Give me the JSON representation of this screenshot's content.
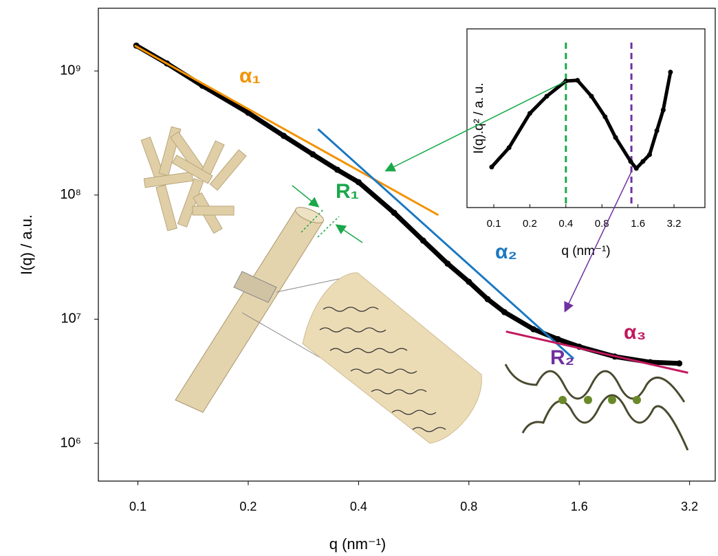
{
  "chart_data": [
    {
      "type": "line",
      "x_label": "q (nm⁻¹)",
      "y_label": "I(q) / a.u.",
      "xscale": "log",
      "yscale": "log",
      "xlim": [
        0.078,
        3.76
      ],
      "ylim": [
        496000,
        3200000000
      ],
      "xticks": [
        0.1,
        0.2,
        0.4,
        0.8,
        1.6,
        3.2
      ],
      "yticks": [
        {
          "value": 1000000,
          "label": "10⁶"
        },
        {
          "value": 10000000,
          "label": "10⁷"
        },
        {
          "value": 100000000,
          "label": "10⁸"
        },
        {
          "value": 1000000000,
          "label": "10⁹"
        }
      ],
      "x": [
        0.099,
        0.12,
        0.15,
        0.2,
        0.25,
        0.3,
        0.35,
        0.4,
        0.5,
        0.6,
        0.7,
        0.8,
        0.9,
        1.0,
        1.2,
        1.4,
        1.6,
        2.0,
        2.5,
        3.0
      ],
      "values": [
        1600000000,
        1150000000,
        760000000,
        460000000,
        300000000,
        213000000,
        160000000,
        127000000,
        72000000,
        43000000,
        28000000,
        20000000,
        14500000,
        11400000,
        8300000,
        6900000,
        6000000,
        5000000,
        4500000,
        4400000
      ],
      "color": "#000000",
      "fits": [
        {
          "x": [
            0.098,
            0.66
          ],
          "values": [
            1600000000,
            69000000
          ],
          "color": "#f39200"
        },
        {
          "x": [
            0.31,
            1.545
          ],
          "values": [
            340000000,
            4800000
          ],
          "color": "#1a78c2"
        },
        {
          "x": [
            1.01,
            3.17
          ],
          "values": [
            7950000,
            3700000
          ],
          "color": "#c0185e"
        }
      ],
      "annotations": [
        {
          "text": "α₁",
          "color": "#f39200"
        },
        {
          "text": "R₁",
          "color": "#1aa84a"
        },
        {
          "text": "α₂",
          "color": "#1a78c2"
        },
        {
          "text": "α₃",
          "color": "#c0185e"
        },
        {
          "text": "R₂",
          "color": "#7030a0"
        }
      ]
    },
    {
      "type": "line",
      "x_label": "q (nm⁻¹)",
      "y_label": "I(q).q² / a. u.",
      "xscale": "log",
      "yscale": "linear",
      "xlim": [
        0.0597,
        5.8
      ],
      "ylim": [
        0,
        1
      ],
      "xticks": [
        0.1,
        0.2,
        0.4,
        0.8,
        1.6,
        3.2
      ],
      "x": [
        0.096,
        0.134,
        0.2,
        0.277,
        0.4,
        0.5,
        0.654,
        0.85,
        1.04,
        1.39,
        1.55,
        1.76,
        2.0,
        2.3,
        2.6,
        2.99
      ],
      "values": [
        0.227,
        0.335,
        0.527,
        0.623,
        0.708,
        0.712,
        0.623,
        0.508,
        0.392,
        0.258,
        0.219,
        0.258,
        0.296,
        0.43,
        0.546,
        0.758
      ],
      "color": "#000000",
      "vlines": [
        {
          "x": 0.4,
          "color": "#1aa84a"
        },
        {
          "x": 1.41,
          "color": "#7030a0"
        }
      ]
    }
  ]
}
